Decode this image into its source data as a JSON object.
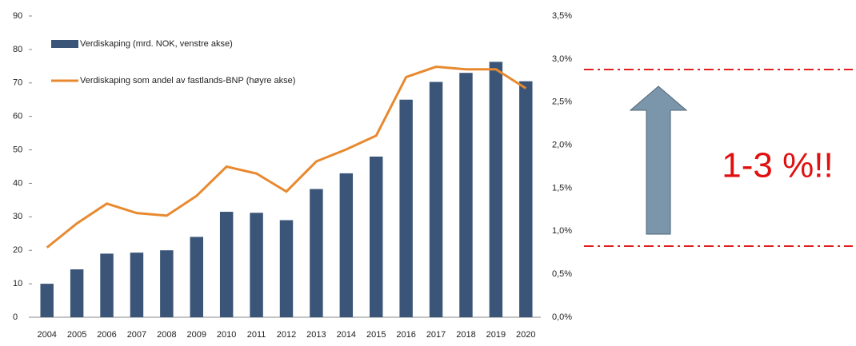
{
  "chart_data": {
    "type": "bar",
    "categories": [
      "2004",
      "2005",
      "2006",
      "2007",
      "2008",
      "2009",
      "2010",
      "2011",
      "2012",
      "2013",
      "2014",
      "2015",
      "2016",
      "2017",
      "2018",
      "2019",
      "2020"
    ],
    "series": [
      {
        "name": "Verdiskaping (mrd. NOK, venstre akse)",
        "type": "bar",
        "color": "#3b5578",
        "values": [
          10,
          14.3,
          19,
          19.3,
          20,
          24,
          31.5,
          31.2,
          29,
          38.3,
          43,
          48,
          65,
          70.3,
          73,
          76.3,
          70.5
        ]
      },
      {
        "name": "Verdiskaping som andel av fastlands-BNP (høyre akse)",
        "type": "line",
        "axis": "y2",
        "color": "#e8892f",
        "values": [
          0.81,
          1.09,
          1.32,
          1.21,
          1.18,
          1.41,
          1.75,
          1.67,
          1.46,
          1.81,
          1.95,
          2.11,
          2.79,
          2.91,
          2.88,
          2.88,
          2.66
        ]
      }
    ],
    "ylim": [
      0,
      90
    ],
    "yticks": [
      0,
      10,
      20,
      30,
      40,
      50,
      60,
      70,
      80,
      90
    ],
    "y2lim": [
      0,
      3.5
    ],
    "y2ticks": [
      {
        "value": 0,
        "label": "0,0%"
      },
      {
        "value": 0.5,
        "label": "0,5%"
      },
      {
        "value": 1,
        "label": "1,0%"
      },
      {
        "value": 1.5,
        "label": "1,5%"
      },
      {
        "value": 2,
        "label": "2,0%"
      },
      {
        "value": 2.5,
        "label": "2,5%"
      },
      {
        "value": 3,
        "label": "3,0%"
      },
      {
        "value": 3.5,
        "label": "3,5%"
      }
    ],
    "legend": "top-left",
    "annotation": "1-3 %!!"
  }
}
